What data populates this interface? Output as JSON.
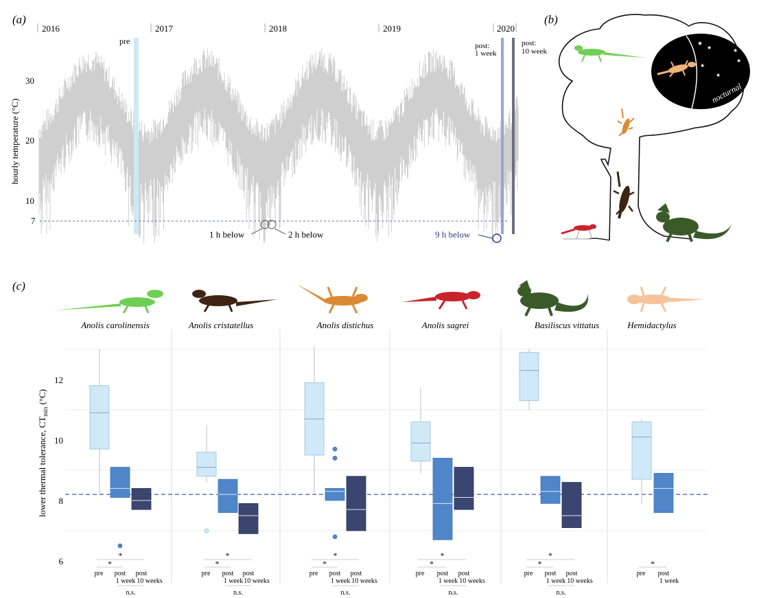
{
  "panel_a": {
    "label": "(a)",
    "y_axis_label": "hourly temperature (°C)",
    "y_ticks": [
      "10",
      "20",
      "30"
    ],
    "threshold_tick": "7",
    "years": [
      "2016",
      "2017",
      "2018",
      "2019",
      "2020"
    ],
    "markers": {
      "pre": "pre",
      "post_1_week_line1": "post:",
      "post_1_week_line2": "1 week",
      "post_10_weeks_line1": "post:",
      "post_10_weeks_line2": "10 week"
    },
    "annotations": {
      "below_1": "1 h below",
      "below_2": "2 h below",
      "below_3": "9 h below"
    },
    "colors": {
      "trace": "#cfcfcf",
      "pre": "#cfe8f7",
      "post1": "#8fa9d9",
      "post10": "#6b6f84",
      "threshold": "#5a6fb0",
      "nine_hours": "#2b3f86"
    }
  },
  "panel_b": {
    "label": "(b)",
    "nocturnal": "nocturnal",
    "colors": {
      "night": "#000000",
      "green": "#6fcf52",
      "orange": "#d98a33",
      "brown": "#3e2412",
      "red": "#c8242b",
      "dark_green": "#3a5a2a",
      "tan": "#f2b27a"
    }
  },
  "panel_c": {
    "label": "(c)",
    "y_axis_label_main": "lower thermal tolerance, CT",
    "y_axis_label_sub": "min",
    "y_axis_label_unit": " (°C)",
    "species": [
      {
        "name": "Anolis carolinensis",
        "groups": [
          "pre",
          "post 1 week",
          "post 10 weeks"
        ],
        "sig": [
          "*",
          "*",
          "n.s."
        ]
      },
      {
        "name": "Anolis cristatellus",
        "groups": [
          "pre",
          "post 1 week",
          "post 10 weeks"
        ],
        "sig": [
          "*",
          "*",
          "n.s."
        ]
      },
      {
        "name": "Anolis distichus",
        "groups": [
          "pre",
          "post 1 week",
          "post 10 weeks"
        ],
        "sig": [
          "*",
          "*",
          "n.s."
        ]
      },
      {
        "name": "Anolis sagrei",
        "groups": [
          "pre",
          "post 1 week",
          "post 10 weeks"
        ],
        "sig": [
          "*",
          "*",
          "n.s."
        ]
      },
      {
        "name": "Basiliscus vittatus",
        "groups": [
          "pre",
          "post 1 week",
          "post 10 weeks"
        ],
        "sig": [
          "*",
          "*",
          "n.s."
        ]
      },
      {
        "name": "Hemidactylus",
        "groups": [
          "pre",
          "post 1 week"
        ],
        "sig": [
          "*"
        ]
      }
    ],
    "x_labels": {
      "pre": "pre",
      "post": "post",
      "one_week": "1 week",
      "ten_weeks": "10 weeks"
    },
    "colors": {
      "pre": "#cfe9f8",
      "post1": "#4f86c9",
      "post10": "#3a4670",
      "reference_line": "#3d55b0"
    }
  },
  "chart_data": {
    "type": "box",
    "ylim": [
      6,
      13.2
    ],
    "y_ticks": [
      6,
      8,
      10,
      12
    ],
    "reference_line": 8.2,
    "species": [
      {
        "name": "Anolis carolinensis",
        "boxes": [
          {
            "group": "pre",
            "whisker_low": 8.2,
            "q1": 9.7,
            "median": 10.9,
            "q3": 11.8,
            "whisker_high": 13.0
          },
          {
            "group": "post 1 week",
            "whisker_low": 8.1,
            "q1": 8.1,
            "median": 8.4,
            "q3": 9.1,
            "whisker_high": 9.1,
            "outliers": [
              6.5
            ]
          },
          {
            "group": "post 10 weeks",
            "whisker_low": 7.7,
            "q1": 7.7,
            "median": 8.0,
            "q3": 8.4,
            "whisker_high": 8.4
          }
        ]
      },
      {
        "name": "Anolis cristatellus",
        "boxes": [
          {
            "group": "pre",
            "whisker_low": 8.6,
            "q1": 8.8,
            "median": 9.1,
            "q3": 9.6,
            "whisker_high": 10.5,
            "outliers": [
              7.0
            ]
          },
          {
            "group": "post 1 week",
            "whisker_low": 7.6,
            "q1": 7.6,
            "median": 8.2,
            "q3": 8.7,
            "whisker_high": 8.7
          },
          {
            "group": "post 10 weeks",
            "whisker_low": 6.9,
            "q1": 6.9,
            "median": 7.5,
            "q3": 7.9,
            "whisker_high": 7.9
          }
        ]
      },
      {
        "name": "Anolis distichus",
        "boxes": [
          {
            "group": "pre",
            "whisker_low": 8.2,
            "q1": 9.5,
            "median": 10.7,
            "q3": 11.9,
            "whisker_high": 13.1
          },
          {
            "group": "post 1 week",
            "whisker_low": 8.0,
            "q1": 8.0,
            "median": 8.3,
            "q3": 8.4,
            "whisker_high": 8.4,
            "outliers": [
              9.7,
              9.4,
              6.8
            ]
          },
          {
            "group": "post 10 weeks",
            "whisker_low": 7.0,
            "q1": 7.0,
            "median": 7.7,
            "q3": 8.8,
            "whisker_high": 8.8
          }
        ]
      },
      {
        "name": "Anolis sagrei",
        "boxes": [
          {
            "group": "pre",
            "whisker_low": 8.9,
            "q1": 9.3,
            "median": 9.9,
            "q3": 10.6,
            "whisker_high": 11.7
          },
          {
            "group": "post 1 week",
            "whisker_low": 6.7,
            "q1": 6.7,
            "median": 7.9,
            "q3": 9.4,
            "whisker_high": 9.4
          },
          {
            "group": "post 10 weeks",
            "whisker_low": 7.7,
            "q1": 7.7,
            "median": 8.1,
            "q3": 9.1,
            "whisker_high": 9.1
          }
        ]
      },
      {
        "name": "Basiliscus vittatus",
        "boxes": [
          {
            "group": "pre",
            "whisker_low": 11.0,
            "q1": 11.3,
            "median": 12.3,
            "q3": 12.9,
            "whisker_high": 13.0
          },
          {
            "group": "post 1 week",
            "whisker_low": 7.9,
            "q1": 7.9,
            "median": 8.3,
            "q3": 8.8,
            "whisker_high": 8.8
          },
          {
            "group": "post 10 weeks",
            "whisker_low": 7.1,
            "q1": 7.1,
            "median": 7.5,
            "q3": 8.6,
            "whisker_high": 8.6
          }
        ]
      },
      {
        "name": "Hemidactylus",
        "boxes": [
          {
            "group": "pre",
            "whisker_low": 7.9,
            "q1": 8.7,
            "median": 10.1,
            "q3": 10.6,
            "whisker_high": 10.7
          },
          {
            "group": "post 1 week",
            "whisker_low": 7.6,
            "q1": 7.6,
            "median": 8.4,
            "q3": 8.9,
            "whisker_high": 8.9
          }
        ]
      }
    ]
  }
}
